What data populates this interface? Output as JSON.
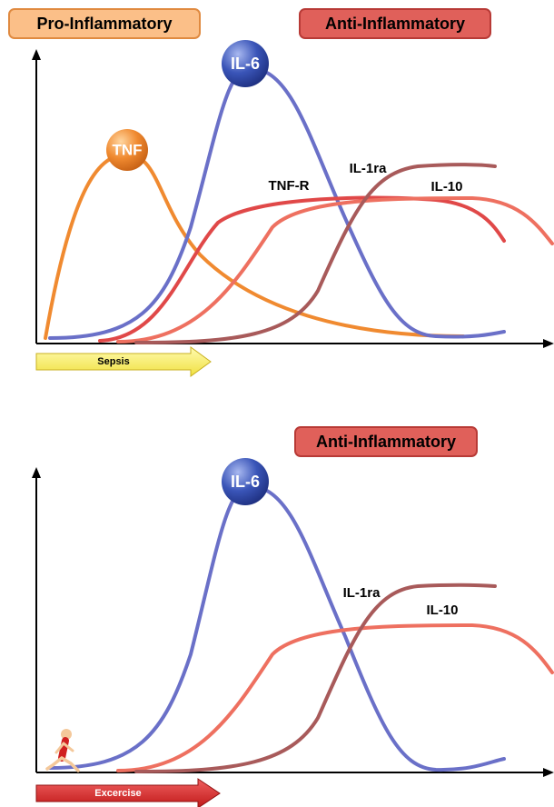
{
  "top_panel": {
    "pro_label": "Pro-Inflammatory",
    "anti_label": "Anti-Inflammatory",
    "il6": "IL-6",
    "tnf": "TNF",
    "tnf_r": "TNF-R",
    "il1ra": "IL-1ra",
    "il10": "IL-10",
    "arrow_label": "Sepsis"
  },
  "bottom_panel": {
    "anti_label": "Anti-Inflammatory",
    "il6": "IL-6",
    "il1ra": "IL-1ra",
    "il10": "IL-10",
    "arrow_label": "Excercise"
  }
}
